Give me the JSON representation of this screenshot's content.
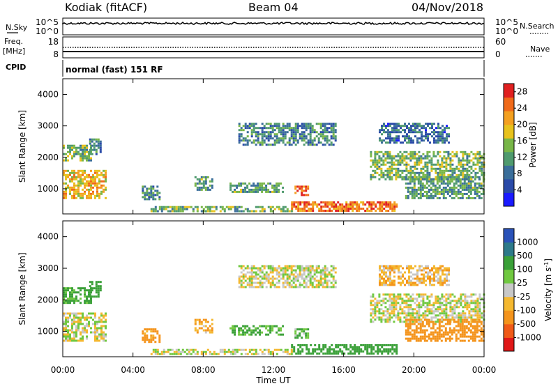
{
  "header": {
    "station": "Kodiak (fitACF)",
    "beam": "Beam 04",
    "date": "04/Nov/2018"
  },
  "noise_panel": {
    "left_label": "N.Sky",
    "left_ticks": [
      "10^5",
      "10^0"
    ],
    "right_label": "N.Search",
    "right_ticks": [
      "10^5",
      "10^0"
    ]
  },
  "freq_panel": {
    "left_label_1": "Freq.",
    "left_label_2": "[MHz]",
    "left_ticks": [
      "18",
      "8"
    ],
    "right_label": "Nave",
    "right_ticks": [
      "60",
      "0"
    ]
  },
  "cpid": {
    "label": "CPID",
    "value": "normal (fast) 151 RF"
  },
  "colors": {
    "power": [
      "#1a1aff",
      "#2a4aa8",
      "#3a6e9a",
      "#4f9a6e",
      "#78b648",
      "#e8c21c",
      "#f4a020",
      "#f06a1a",
      "#e02020"
    ],
    "velocity": [
      "#e01818",
      "#f05a18",
      "#f4941c",
      "#f4b830",
      "#c8c8c8",
      "#70c840",
      "#3aa038",
      "#2d7a8a",
      "#2a52b8"
    ]
  },
  "chart_data": [
    {
      "type": "heatmap",
      "panel": "power",
      "ylabel": "Slant Range [km]",
      "yticks": [
        "1000",
        "2000",
        "3000",
        "4000"
      ],
      "ylim": [
        200,
        4500
      ],
      "xlim": [
        "00:00",
        "24:00"
      ],
      "xticks": [
        "00:00",
        "04:00",
        "08:00",
        "12:00",
        "16:00",
        "20:00",
        "00:00"
      ],
      "colorbar": {
        "label": "Power [dB]",
        "ticks": [
          "4",
          "8",
          "12",
          "16",
          "20",
          "24",
          "28"
        ],
        "range": [
          0,
          30
        ]
      },
      "regions": [
        {
          "t0": 0.0,
          "t1": 2.5,
          "r0": 700,
          "r1": 1600,
          "power": 20
        },
        {
          "t0": 0.0,
          "t1": 1.6,
          "r0": 1900,
          "r1": 2400,
          "power": 14
        },
        {
          "t0": 1.5,
          "t1": 2.2,
          "r0": 2100,
          "r1": 2600,
          "power": 10
        },
        {
          "t0": 4.5,
          "t1": 5.5,
          "r0": 700,
          "r1": 1100,
          "power": 10
        },
        {
          "t0": 7.5,
          "t1": 8.5,
          "r0": 1000,
          "r1": 1400,
          "power": 12
        },
        {
          "t0": 9.5,
          "t1": 12.5,
          "r0": 900,
          "r1": 1200,
          "power": 12
        },
        {
          "t0": 10.0,
          "t1": 15.5,
          "r0": 2400,
          "r1": 3100,
          "power": 10
        },
        {
          "t0": 13.2,
          "t1": 14.0,
          "r0": 800,
          "r1": 1100,
          "power": 26
        },
        {
          "t0": 13.0,
          "t1": 19.0,
          "r0": 300,
          "r1": 600,
          "power": 24
        },
        {
          "t0": 5.0,
          "t1": 13.0,
          "r0": 300,
          "r1": 450,
          "power": 14
        },
        {
          "t0": 17.5,
          "t1": 24.0,
          "r0": 1300,
          "r1": 2200,
          "power": 14
        },
        {
          "t0": 19.5,
          "t1": 24.0,
          "r0": 700,
          "r1": 1400,
          "power": 12
        },
        {
          "t0": 18.0,
          "t1": 22.0,
          "r0": 2500,
          "r1": 3100,
          "power": 8
        }
      ]
    },
    {
      "type": "heatmap",
      "panel": "velocity",
      "ylabel": "Slant Range [km]",
      "yticks": [
        "1000",
        "2000",
        "3000",
        "4000"
      ],
      "ylim": [
        200,
        4500
      ],
      "xlim": [
        "00:00",
        "24:00"
      ],
      "xticks": [
        "00:00",
        "04:00",
        "08:00",
        "12:00",
        "16:00",
        "20:00",
        "00:00"
      ],
      "xlabel": "Time UT",
      "colorbar": {
        "label": "Velocity [m s",
        "label_sup": "-1",
        "ticks": [
          "-1000",
          "-500",
          "-100",
          "-25",
          "25",
          "100",
          "500",
          "1000"
        ]
      },
      "regions": [
        {
          "t0": 0.0,
          "t1": 2.5,
          "r0": 700,
          "r1": 1600,
          "velocity": 0
        },
        {
          "t0": 0.0,
          "t1": 1.6,
          "r0": 1900,
          "r1": 2400,
          "velocity": 150
        },
        {
          "t0": 1.5,
          "t1": 2.2,
          "r0": 2100,
          "r1": 2600,
          "velocity": 300
        },
        {
          "t0": 4.5,
          "t1": 5.5,
          "r0": 700,
          "r1": 1100,
          "velocity": -150
        },
        {
          "t0": 7.5,
          "t1": 8.5,
          "r0": 1000,
          "r1": 1400,
          "velocity": -80
        },
        {
          "t0": 9.5,
          "t1": 12.5,
          "r0": 900,
          "r1": 1200,
          "velocity": 120
        },
        {
          "t0": 10.0,
          "t1": 15.5,
          "r0": 2400,
          "r1": 3100,
          "velocity": 0
        },
        {
          "t0": 13.2,
          "t1": 14.0,
          "r0": 800,
          "r1": 1100,
          "velocity": 80
        },
        {
          "t0": 13.0,
          "t1": 19.0,
          "r0": 300,
          "r1": 600,
          "velocity": 200
        },
        {
          "t0": 5.0,
          "t1": 13.0,
          "r0": 300,
          "r1": 450,
          "velocity": 0
        },
        {
          "t0": 17.5,
          "t1": 24.0,
          "r0": 1300,
          "r1": 2200,
          "velocity": 0
        },
        {
          "t0": 19.5,
          "t1": 24.0,
          "r0": 700,
          "r1": 1400,
          "velocity": -200
        },
        {
          "t0": 18.0,
          "t1": 22.0,
          "r0": 2500,
          "r1": 3100,
          "velocity": -60
        }
      ]
    }
  ]
}
